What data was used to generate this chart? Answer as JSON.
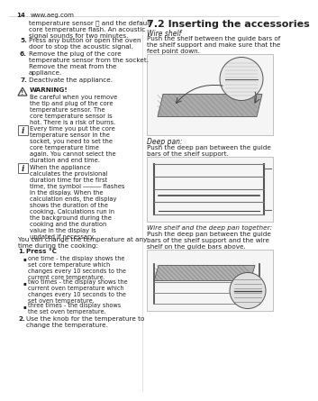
{
  "page_number": "14",
  "website": "www.aeg.com",
  "bg_color": "#ffffff",
  "left_column": {
    "intro_text": "temperature sensor 🔧 and the default\ncore temperature flash. An acoustic\nsignal sounds for two minutes.",
    "steps": [
      {
        "num": "5.",
        "text": "Press any button or open the oven\ndoor to stop the acoustic signal."
      },
      {
        "num": "6.",
        "text": "Remove the plug of the core\ntemperature sensor from the socket.\nRemove the meat from the\nappliance."
      },
      {
        "num": "7.",
        "text": "Deactivate the appliance."
      }
    ],
    "warning_title": "WARNING!",
    "warning_text": "Be careful when you remove\nthe tip and plug of the core\ntemperature sensor. The\ncore temperature sensor is\nhot. There is a risk of burns.",
    "info1_text": "Every time you put the core\ntemperature sensor in the\nsocket, you need to set the\ncore temperature time\nagain. You cannot select the\nduration and end time.",
    "info2_text": "When the appliance\ncalculates the provisional\nduration time for the first\ntime, the symbol ――― flashes\nin the display. When the\ncalculation ends, the display\nshows the duration of the\ncooking. Calculations run in\nthe background during the\ncooking and the duration\nvalue in the display is\nupdated if necessary.",
    "bottom_text": "You can change the temperature at any\ntime during the cooking:",
    "press_step_num": "1.",
    "press_step_text": "Press °C",
    "bullets": [
      "one time - the display shows the\nset core temperature which\nchanges every 10 seconds to the\ncurrent core temperature.",
      "two times - the display shows the\ncurrent oven temperature which\nchanges every 10 seconds to the\nset oven temperature.",
      "three times - the display shows\nthe set oven temperature."
    ],
    "step2_num": "2.",
    "step2_text": "Use the knob for the temperature to\nchange the temperature."
  },
  "right_column": {
    "section_title": "7.2 Inserting the accessories",
    "wire_shelf_label": "Wire shelf",
    "wire_shelf_text": "Push the shelf between the guide bars of\nthe shelf support and make sure that the\nfeet point down.",
    "deep_pan_label": "Deep pan:",
    "deep_pan_text": "Push the deep pan between the guide\nbars of the shelf support.",
    "together_label": "Wire shelf and the deep pan together:",
    "together_text": "Push the deep pan between the guide\nbars of the shelf support and the wire\nshelf on the guide bars above."
  },
  "font_size_body": 5.2,
  "font_size_header": 8.0,
  "font_size_page": 5.0,
  "text_color": "#222222",
  "line_color": "#888888"
}
